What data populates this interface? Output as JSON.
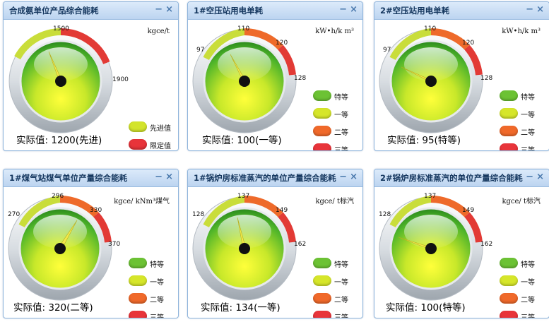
{
  "colors": {
    "special": "#6cc234",
    "first": "#d6e62a",
    "second": "#f0692a",
    "third": "#e8343a",
    "advanced": "#d3e42c",
    "limit": "#e8343a"
  },
  "icons": {
    "minimize": "minimize-icon",
    "close": "close-icon"
  },
  "panels": [
    {
      "title": "合成氨单位产品综合能耗",
      "unit": "kgce/t",
      "ticks": [
        "1500",
        "1900"
      ],
      "actual_label": "实际值:",
      "actual_value": "1200(先进)",
      "needle": 1200,
      "legend": [
        {
          "color": "#d3e42c",
          "label": "先进值"
        },
        {
          "color": "#e8343a",
          "label": "限定值"
        }
      ]
    },
    {
      "title": "1#空压站用电单耗",
      "unit": "kW•h/k m³",
      "ticks": [
        "97",
        "110",
        "120",
        "128"
      ],
      "actual_label": "实际值:",
      "actual_value": "100(一等)",
      "needle": 100,
      "legend": [
        {
          "color": "#6cc234",
          "label": "特等"
        },
        {
          "color": "#d6e62a",
          "label": "一等"
        },
        {
          "color": "#f0692a",
          "label": "二等"
        },
        {
          "color": "#e8343a",
          "label": "三等"
        }
      ]
    },
    {
      "title": "2#空压站用电单耗",
      "unit": "kW•h/k m³",
      "ticks": [
        "97",
        "110",
        "120",
        "128"
      ],
      "actual_label": "实际值:",
      "actual_value": "95(特等)",
      "needle": 95,
      "legend": [
        {
          "color": "#6cc234",
          "label": "特等"
        },
        {
          "color": "#d6e62a",
          "label": "一等"
        },
        {
          "color": "#f0692a",
          "label": "二等"
        },
        {
          "color": "#e8343a",
          "label": "三等"
        }
      ]
    },
    {
      "title": "1#煤气站煤气单位产量综合能耗",
      "unit": "kgce/ kNm³煤气",
      "ticks": [
        "270",
        "296",
        "330",
        "370"
      ],
      "actual_label": "实际值:",
      "actual_value": "320(二等)",
      "needle": 320,
      "legend": [
        {
          "color": "#6cc234",
          "label": "特等"
        },
        {
          "color": "#d6e62a",
          "label": "一等"
        },
        {
          "color": "#f0692a",
          "label": "二等"
        },
        {
          "color": "#e8343a",
          "label": "三等"
        }
      ]
    },
    {
      "title": "1#锅炉房标准蒸汽的单位产量综合能耗",
      "unit": "kgce/ t标汽",
      "ticks": [
        "128",
        "137",
        "149",
        "162"
      ],
      "actual_label": "实际值:",
      "actual_value": "134(一等)",
      "needle": 134,
      "legend": [
        {
          "color": "#6cc234",
          "label": "特等"
        },
        {
          "color": "#d6e62a",
          "label": "一等"
        },
        {
          "color": "#f0692a",
          "label": "二等"
        },
        {
          "color": "#e8343a",
          "label": "三等"
        }
      ]
    },
    {
      "title": "2#锅炉房标准蒸汽的单位产量综合能耗",
      "unit": "kgce/ t标汽",
      "ticks": [
        "128",
        "137",
        "149",
        "162"
      ],
      "actual_label": "实际值:",
      "actual_value": "100(特等)",
      "needle": 100,
      "legend": [
        {
          "color": "#6cc234",
          "label": "特等"
        },
        {
          "color": "#d6e62a",
          "label": "一等"
        },
        {
          "color": "#f0692a",
          "label": "二等"
        },
        {
          "color": "#e8343a",
          "label": "三等"
        }
      ]
    }
  ]
}
